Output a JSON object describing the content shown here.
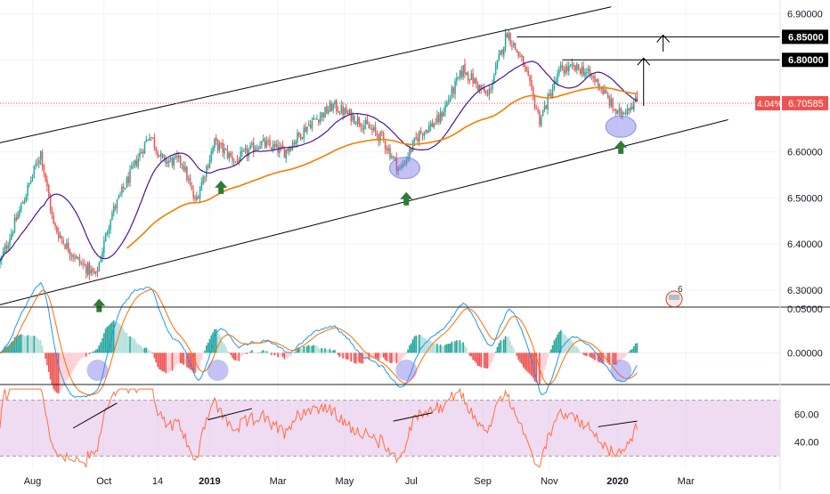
{
  "chart_data": {
    "type": "candlestick",
    "main": {
      "price_ticks": [
        "6.90000",
        "6.80000",
        "6.70000",
        "6.60000",
        "6.50000",
        "6.40000",
        "6.30000"
      ],
      "price_tick_values": [
        6.9,
        6.8,
        6.7,
        6.6,
        6.5,
        6.4,
        6.3
      ],
      "ylim": [
        6.265,
        6.93
      ],
      "bull_color": "#26a69a",
      "bear_color": "#ef5350",
      "ma_fast_color": "#4a148c",
      "ma_slow_color": "#f57c00",
      "current_price": {
        "value": 6.70585,
        "label": "6.70585",
        "change_label": "4.04%",
        "color": "#ef5350"
      },
      "target_labels": [
        {
          "value": 6.85,
          "label": "6.85000"
        },
        {
          "value": 6.8,
          "label": "6.80000"
        }
      ],
      "anchors": [
        {
          "t": 0,
          "p": 6.36
        },
        {
          "t": 15,
          "p": 6.5
        },
        {
          "t": 25,
          "p": 6.6
        },
        {
          "t": 33,
          "p": 6.44
        },
        {
          "t": 40,
          "p": 6.4
        },
        {
          "t": 49,
          "p": 6.36
        },
        {
          "t": 59,
          "p": 6.33
        },
        {
          "t": 68,
          "p": 6.46
        },
        {
          "t": 84,
          "p": 6.58
        },
        {
          "t": 92,
          "p": 6.64
        },
        {
          "t": 100,
          "p": 6.58
        },
        {
          "t": 112,
          "p": 6.58
        },
        {
          "t": 120,
          "p": 6.49
        },
        {
          "t": 132,
          "p": 6.62
        },
        {
          "t": 145,
          "p": 6.58
        },
        {
          "t": 160,
          "p": 6.62
        },
        {
          "t": 175,
          "p": 6.6
        },
        {
          "t": 190,
          "p": 6.66
        },
        {
          "t": 205,
          "p": 6.7
        },
        {
          "t": 220,
          "p": 6.67
        },
        {
          "t": 235,
          "p": 6.63
        },
        {
          "t": 246,
          "p": 6.56
        },
        {
          "t": 258,
          "p": 6.64
        },
        {
          "t": 270,
          "p": 6.67
        },
        {
          "t": 285,
          "p": 6.78
        },
        {
          "t": 300,
          "p": 6.72
        },
        {
          "t": 312,
          "p": 6.86
        },
        {
          "t": 322,
          "p": 6.79
        },
        {
          "t": 332,
          "p": 6.67
        },
        {
          "t": 345,
          "p": 6.78
        },
        {
          "t": 358,
          "p": 6.78
        },
        {
          "t": 368,
          "p": 6.75
        },
        {
          "t": 380,
          "p": 6.68
        },
        {
          "t": 387,
          "p": 6.7
        },
        {
          "t": 392,
          "p": 6.71
        }
      ],
      "channel_lines": [
        {
          "from": {
            "t": 0,
            "p": 6.62
          },
          "to": {
            "t": 376,
            "p": 6.915
          }
        },
        {
          "from": {
            "t": 0,
            "p": 6.268
          },
          "to": {
            "t": 448,
            "p": 6.67
          }
        }
      ],
      "resistance_lines": [
        {
          "from": {
            "t": 318,
            "p": 6.85
          },
          "to": {
            "t": 460,
            "p": 6.85
          }
        },
        {
          "from": {
            "t": 346,
            "p": 6.8
          },
          "to": {
            "t": 460,
            "p": 6.8
          }
        }
      ],
      "projection_arrows": [
        {
          "t": 408,
          "from": 6.818,
          "to": 6.85
        },
        {
          "t": 396,
          "from": 6.7,
          "to": 6.8
        }
      ],
      "buy_arrows_t": [
        61,
        136,
        250,
        382
      ],
      "highlight_ellipses": [
        {
          "t": 249,
          "p": 6.565
        },
        {
          "t": 382,
          "p": 6.655
        }
      ]
    },
    "macd": {
      "zero_label": "0.00000",
      "top_label": "0.05000",
      "highlight_t": [
        60,
        134,
        250,
        382
      ]
    },
    "rsi": {
      "ticks": [
        "60.00",
        "40.00"
      ],
      "tick_values": [
        60,
        40
      ],
      "band": [
        30,
        70
      ],
      "band_color": "#e1bee7",
      "trend_lines": [
        {
          "from": {
            "t": 45,
            "v": 50
          },
          "to": {
            "t": 72,
            "v": 68
          }
        },
        {
          "from": {
            "t": 128,
            "v": 56
          },
          "to": {
            "t": 155,
            "v": 64
          }
        },
        {
          "from": {
            "t": 242,
            "v": 55
          },
          "to": {
            "t": 266,
            "v": 61
          }
        },
        {
          "from": {
            "t": 368,
            "v": 51
          },
          "to": {
            "t": 392,
            "v": 55
          }
        }
      ]
    },
    "time_axis": {
      "ticks": [
        {
          "label": "Aug",
          "t": 20
        },
        {
          "label": "Oct",
          "t": 64
        },
        {
          "label": "14",
          "t": 97
        },
        {
          "label": "2019",
          "t": 129
        },
        {
          "label": "Mar",
          "t": 171
        },
        {
          "label": "May",
          "t": 212
        },
        {
          "label": "Jul",
          "t": 253
        },
        {
          "label": "Sep",
          "t": 297
        },
        {
          "label": "Nov",
          "t": 338
        },
        {
          "label": "2020",
          "t": 380
        },
        {
          "label": "Mar",
          "t": 422
        }
      ],
      "t_range": [
        0,
        480
      ]
    },
    "watermark_text": "6"
  }
}
